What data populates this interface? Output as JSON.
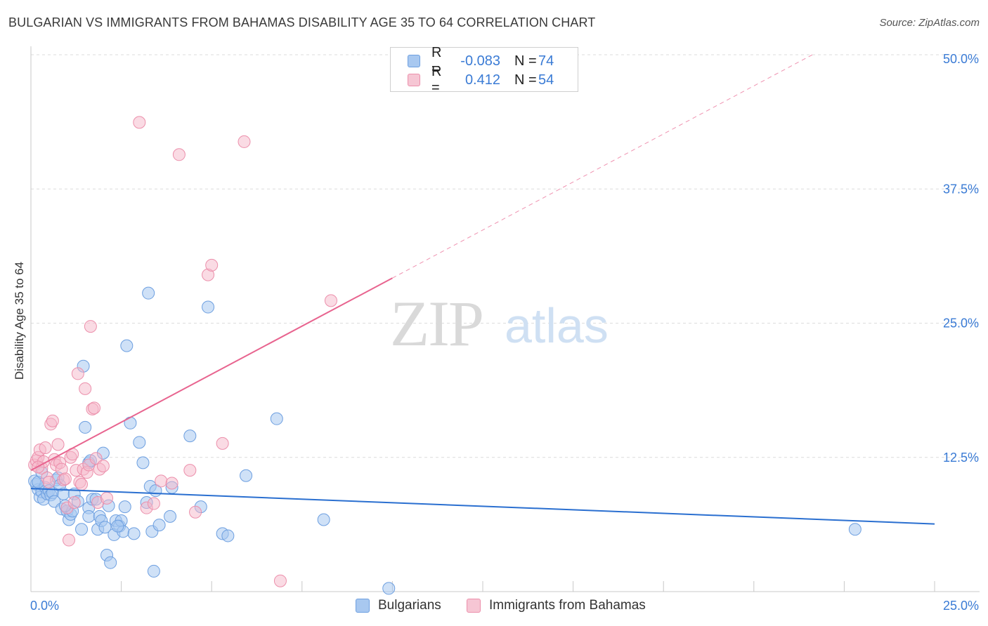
{
  "title": "BULGARIAN VS IMMIGRANTS FROM BAHAMAS DISABILITY AGE 35 TO 64 CORRELATION CHART",
  "source": "Source: ZipAtlas.com",
  "watermark": {
    "zip": "ZIP",
    "atlas": "atlas"
  },
  "legend_top": [
    {
      "r_label": "R =",
      "r_value": "-0.083",
      "n_label": "N =",
      "n_value": "74"
    },
    {
      "r_label": "R =",
      "r_value": "0.412",
      "n_label": "N =",
      "n_value": "54"
    }
  ],
  "legend_bottom": [
    "Bulgarians",
    "Immigrants from Bahamas"
  ],
  "colors": {
    "blue_fill": "#a8c8f0",
    "blue_stroke": "#6d9fe0",
    "blue_line": "#2a6fd0",
    "pink_fill": "#f6b8c9",
    "pink_stroke": "#ec8fab",
    "pink_line": "#e8648f",
    "tick_label": "#3a7bd5",
    "grid": "#dcdcdc"
  },
  "chart_data": {
    "type": "scatter",
    "title": "BULGARIAN VS IMMIGRANTS FROM BAHAMAS DISABILITY AGE 35 TO 64 CORRELATION CHART",
    "xlabel": "",
    "ylabel": "Disability Age 35 to 64",
    "xlim": [
      0,
      25
    ],
    "ylim": [
      0,
      50
    ],
    "x_tick_labels": [
      "0.0%",
      "25.0%"
    ],
    "y_ticks": [
      12.5,
      25.0,
      37.5,
      50.0
    ],
    "y_tick_labels": [
      "12.5%",
      "25.0%",
      "37.5%",
      "50.0%"
    ],
    "series": [
      {
        "name": "Bulgarians",
        "color": "#a8c8f0",
        "trend": {
          "x": [
            0,
            25
          ],
          "y": [
            9.6,
            6.3
          ],
          "dashed_extension": false
        },
        "points": [
          [
            0.15,
            10.0
          ],
          [
            0.2,
            9.5
          ],
          [
            0.25,
            8.8
          ],
          [
            0.3,
            9.3
          ],
          [
            0.35,
            8.6
          ],
          [
            0.4,
            9.7
          ],
          [
            0.45,
            9.1
          ],
          [
            0.5,
            9.4
          ],
          [
            0.55,
            9.0
          ],
          [
            0.6,
            9.2
          ],
          [
            0.65,
            8.4
          ],
          [
            0.7,
            10.4
          ],
          [
            0.75,
            10.6
          ],
          [
            0.8,
            9.9
          ],
          [
            0.85,
            7.7
          ],
          [
            0.9,
            9.1
          ],
          [
            1.0,
            7.5
          ],
          [
            1.05,
            6.7
          ],
          [
            1.1,
            7.2
          ],
          [
            1.15,
            7.5
          ],
          [
            1.2,
            9.1
          ],
          [
            1.3,
            8.4
          ],
          [
            1.4,
            5.8
          ],
          [
            1.45,
            21.0
          ],
          [
            1.5,
            15.3
          ],
          [
            1.6,
            7.8
          ],
          [
            1.6,
            7.0
          ],
          [
            1.6,
            12.0
          ],
          [
            1.65,
            12.2
          ],
          [
            1.7,
            8.6
          ],
          [
            1.8,
            8.6
          ],
          [
            1.85,
            5.8
          ],
          [
            1.9,
            7.0
          ],
          [
            1.95,
            6.6
          ],
          [
            2.0,
            12.9
          ],
          [
            2.05,
            6.0
          ],
          [
            2.1,
            3.4
          ],
          [
            2.15,
            8.0
          ],
          [
            2.2,
            2.7
          ],
          [
            2.3,
            5.3
          ],
          [
            2.35,
            6.6
          ],
          [
            2.45,
            6.1
          ],
          [
            2.5,
            6.6
          ],
          [
            2.55,
            5.6
          ],
          [
            2.6,
            7.9
          ],
          [
            2.65,
            22.9
          ],
          [
            2.75,
            15.7
          ],
          [
            2.85,
            5.4
          ],
          [
            3.0,
            13.9
          ],
          [
            3.1,
            12.0
          ],
          [
            3.2,
            8.3
          ],
          [
            3.25,
            27.8
          ],
          [
            3.3,
            9.8
          ],
          [
            3.35,
            5.6
          ],
          [
            3.4,
            1.9
          ],
          [
            3.45,
            9.4
          ],
          [
            3.55,
            6.2
          ],
          [
            3.85,
            7.0
          ],
          [
            3.9,
            9.7
          ],
          [
            4.4,
            14.5
          ],
          [
            4.7,
            7.9
          ],
          [
            4.9,
            26.5
          ],
          [
            5.3,
            5.4
          ],
          [
            5.45,
            5.2
          ],
          [
            5.95,
            10.8
          ],
          [
            6.8,
            16.1
          ],
          [
            8.1,
            6.7
          ],
          [
            9.9,
            0.3
          ],
          [
            22.8,
            5.8
          ],
          [
            0.1,
            10.3
          ],
          [
            0.2,
            10.2
          ],
          [
            0.3,
            11.1
          ],
          [
            0.95,
            8.0
          ],
          [
            2.4,
            6.1
          ]
        ]
      },
      {
        "name": "Immigrants from Bahamas",
        "color": "#f6b8c9",
        "trend": {
          "x": [
            0,
            10
          ],
          "y": [
            11.3,
            29.2
          ],
          "dashed_extension": true,
          "dash_to": {
            "x": 25,
            "y": 57.5
          }
        },
        "points": [
          [
            0.1,
            11.8
          ],
          [
            0.15,
            12.2
          ],
          [
            0.2,
            12.5
          ],
          [
            0.25,
            13.2
          ],
          [
            0.3,
            11.5
          ],
          [
            0.35,
            12.1
          ],
          [
            0.4,
            13.4
          ],
          [
            0.45,
            10.6
          ],
          [
            0.5,
            10.2
          ],
          [
            0.55,
            15.6
          ],
          [
            0.6,
            15.9
          ],
          [
            0.65,
            12.3
          ],
          [
            0.7,
            11.8
          ],
          [
            0.75,
            13.7
          ],
          [
            0.8,
            12.0
          ],
          [
            0.85,
            11.4
          ],
          [
            0.9,
            10.4
          ],
          [
            0.95,
            10.5
          ],
          [
            1.0,
            7.8
          ],
          [
            1.05,
            4.8
          ],
          [
            1.1,
            12.5
          ],
          [
            1.15,
            12.8
          ],
          [
            1.2,
            8.3
          ],
          [
            1.25,
            11.3
          ],
          [
            1.3,
            20.3
          ],
          [
            1.35,
            10.2
          ],
          [
            1.4,
            10.0
          ],
          [
            1.45,
            11.4
          ],
          [
            1.5,
            18.9
          ],
          [
            1.55,
            11.1
          ],
          [
            1.6,
            11.8
          ],
          [
            1.65,
            24.7
          ],
          [
            1.7,
            17.0
          ],
          [
            1.75,
            17.1
          ],
          [
            1.8,
            12.4
          ],
          [
            1.85,
            8.3
          ],
          [
            1.9,
            11.4
          ],
          [
            2.0,
            11.7
          ],
          [
            2.1,
            8.7
          ],
          [
            3.0,
            43.7
          ],
          [
            3.2,
            7.8
          ],
          [
            3.4,
            8.2
          ],
          [
            3.6,
            10.3
          ],
          [
            3.9,
            10.1
          ],
          [
            4.1,
            40.7
          ],
          [
            4.4,
            11.3
          ],
          [
            4.55,
            7.4
          ],
          [
            4.9,
            29.5
          ],
          [
            5.0,
            30.4
          ],
          [
            5.3,
            13.8
          ],
          [
            5.9,
            41.9
          ],
          [
            6.9,
            1.0
          ],
          [
            8.3,
            27.1
          ],
          [
            0.2,
            11.6
          ]
        ]
      }
    ]
  }
}
